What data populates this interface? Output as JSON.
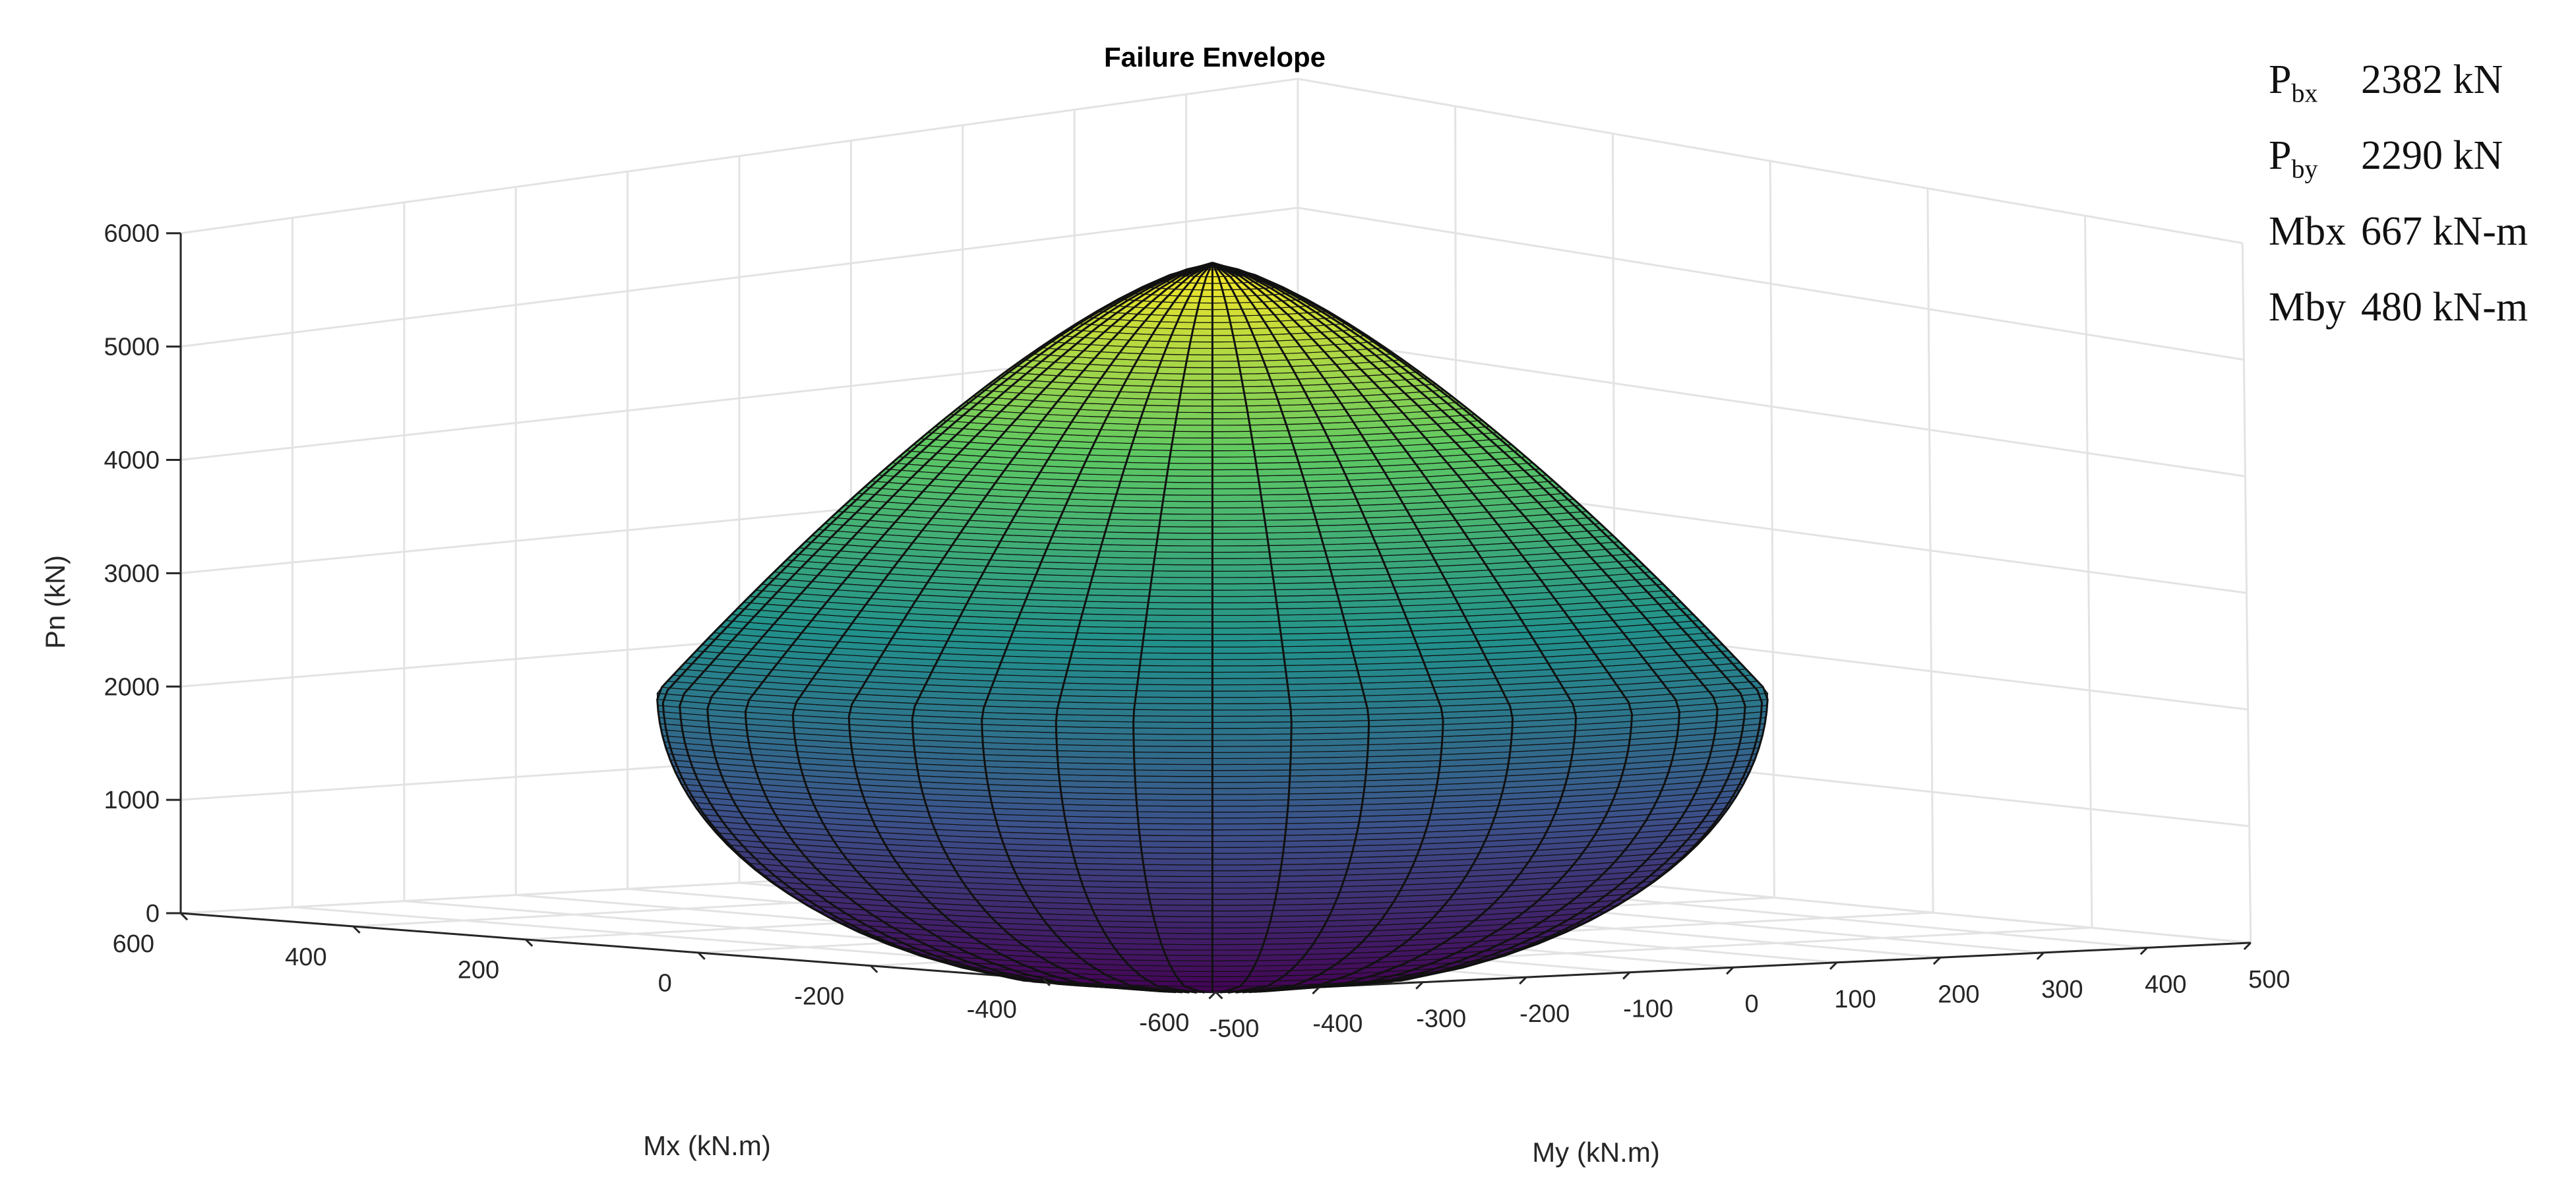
{
  "chart_data": {
    "type": "surface3d",
    "title": "Failure Envelope",
    "xlabel": "Mx (kN.m)",
    "ylabel": "My (kN.m)",
    "zlabel": "Pn (kN)",
    "xlim": [
      -600,
      600
    ],
    "ylim": [
      -500,
      500
    ],
    "zlim": [
      0,
      6000
    ],
    "x_ticks": [
      "600",
      "400",
      "200",
      "0",
      "-200",
      "-400",
      "-600"
    ],
    "y_ticks": [
      "-500",
      "-400",
      "-300",
      "-200",
      "-100",
      "0",
      "100",
      "200",
      "300",
      "400",
      "500"
    ],
    "z_ticks": [
      "0",
      "1000",
      "2000",
      "3000",
      "4000",
      "5000",
      "6000"
    ],
    "grid": true,
    "colormap": [
      "#440154",
      "#3b528b",
      "#21918c",
      "#5ec962",
      "#fde725"
    ],
    "surface": {
      "peak_Pn": 5700,
      "Mbx": 667,
      "Mby": 480,
      "Pbx": 2382,
      "Pby": 2290
    },
    "annotations": [
      {
        "base": "P",
        "sub": "bx",
        "value": "2382 kN"
      },
      {
        "base": "P",
        "sub": "by",
        "value": "2290 kN"
      },
      {
        "base": "Mbx",
        "sub": "",
        "value": "667 kN-m"
      },
      {
        "base": "Mby",
        "sub": "",
        "value": "480 kN-m"
      }
    ]
  }
}
